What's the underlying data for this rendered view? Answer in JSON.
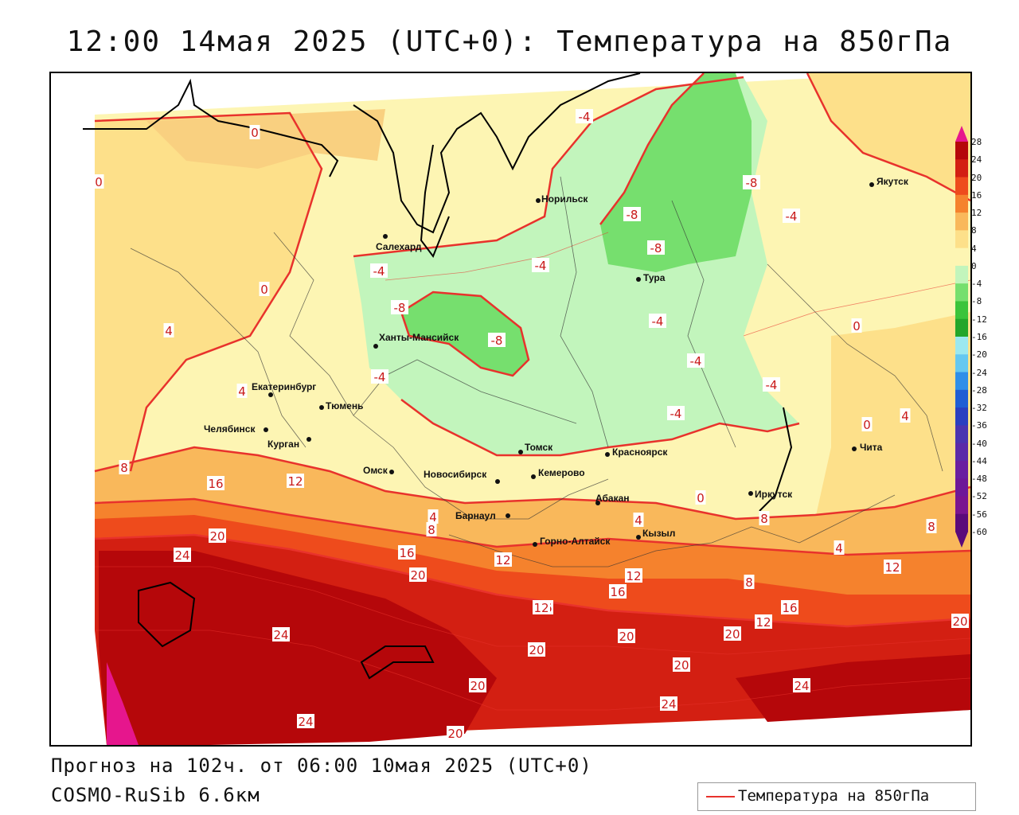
{
  "header": {
    "title": "12:00 14мая 2025 (UTC+0): Температура на 850гПа"
  },
  "map": {
    "cities": [
      {
        "name": "Салехард"
      },
      {
        "name": "Норильск"
      },
      {
        "name": "Якутск"
      },
      {
        "name": "Тура"
      },
      {
        "name": "Ханты-Мансийск"
      },
      {
        "name": "Екатеринбург"
      },
      {
        "name": "Тюмень"
      },
      {
        "name": "Челябинск"
      },
      {
        "name": "Курган"
      },
      {
        "name": "Омск"
      },
      {
        "name": "Новосибирск"
      },
      {
        "name": "Томск"
      },
      {
        "name": "Кемерово"
      },
      {
        "name": "Красноярск"
      },
      {
        "name": "Барнаул"
      },
      {
        "name": "Абакан"
      },
      {
        "name": "Горно-Алтайск"
      },
      {
        "name": "Кызыл"
      },
      {
        "name": "Иркутск"
      },
      {
        "name": "Чита"
      }
    ],
    "isotherm_labels": [
      "-4",
      "0",
      "-8",
      "-8",
      "-8",
      "-4",
      "0",
      "-4",
      "-4",
      "-8",
      "-8",
      "-4",
      "0",
      "-4",
      "-4",
      "-4",
      "-4",
      "0",
      "4",
      "4",
      "4",
      "8",
      "16",
      "12",
      "4",
      "8",
      "0",
      "0",
      "8",
      "4",
      "12",
      "20",
      "24",
      "16",
      "12",
      "16",
      "12",
      "20",
      "16",
      "8",
      "8",
      "4",
      "16",
      "12",
      "20",
      "24",
      "20",
      "20",
      "12",
      "20",
      "20",
      "24",
      "24",
      "20",
      "24",
      "20"
    ],
    "palette": {
      "neg8": "#76df6e",
      "neg4": "#c2f5bc",
      "zero": "#fdf5b3",
      "pos4": "#fde08a",
      "pos8": "#f9b85b",
      "pos12": "#f5822d",
      "pos16": "#ee4b1c",
      "pos20": "#d31f12",
      "pos24": "#b5070a",
      "pos28": "#e6168d",
      "isotherm": "#e8322c"
    }
  },
  "colorbar": {
    "ticks": [
      "28",
      "24",
      "20",
      "16",
      "12",
      "8",
      "4",
      "0",
      "-4",
      "-8",
      "-12",
      "-16",
      "-20",
      "-24",
      "-28",
      "-32",
      "-36",
      "-40",
      "-44",
      "-48",
      "-52",
      "-56",
      "-60"
    ],
    "colors": [
      "#b5070a",
      "#d31f12",
      "#ee4b1c",
      "#f5822d",
      "#f9b85b",
      "#fde08a",
      "#fdf5b3",
      "#c2f5bc",
      "#76df6e",
      "#3bc43b",
      "#23a62a",
      "#9be8ef",
      "#65c8f0",
      "#2f8fe8",
      "#1f5ed4",
      "#2a3fc0",
      "#4a34b0",
      "#5b2aa8",
      "#6a1fa0",
      "#6e1898",
      "#7a1490",
      "#5a0a7a"
    ]
  },
  "footer": {
    "forecast_line": "Прогноз на 102ч. от 06:00 10мая 2025 (UTC+0)",
    "model_line": "COSMO-RuSib 6.6км"
  },
  "legend": {
    "label": "Температура на 850гПа"
  }
}
